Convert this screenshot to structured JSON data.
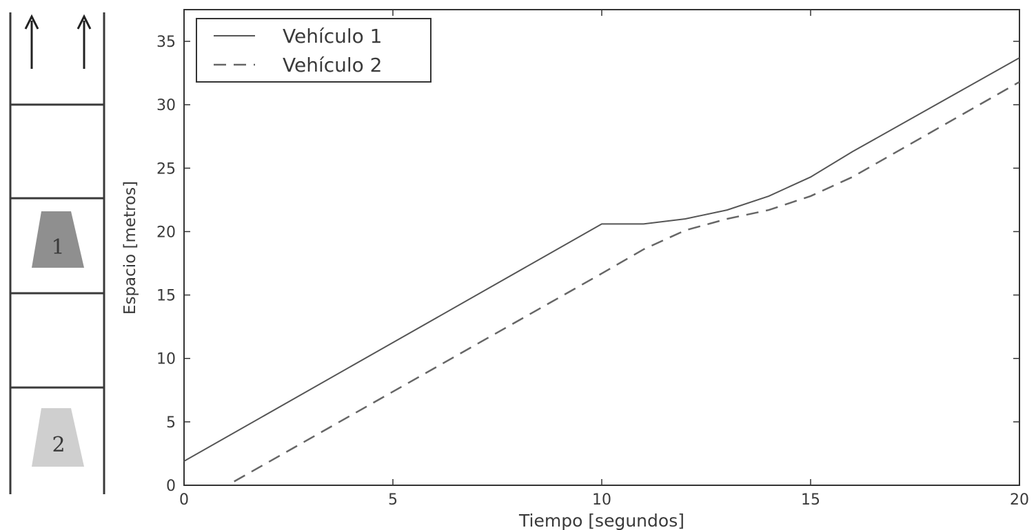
{
  "road": {
    "vehicle_1_label": "1",
    "vehicle_2_label": "2",
    "vehicle_1_color": "#8f8f8f",
    "vehicle_2_color": "#cfcfcf",
    "direction_icons": [
      "up-arrow-icon",
      "up-arrow-icon"
    ]
  },
  "chart_data": {
    "type": "line",
    "title": "",
    "xlabel": "Tiempo [segundos]",
    "ylabel": "Espacio [metros]",
    "xlim": [
      0,
      20
    ],
    "ylim": [
      0,
      37.5
    ],
    "xticks": [
      0,
      5,
      10,
      15,
      20
    ],
    "yticks": [
      0,
      5,
      10,
      15,
      20,
      25,
      30,
      35
    ],
    "grid": false,
    "legend_position": "top-left",
    "series": [
      {
        "name": "Vehículo 1",
        "style": "solid",
        "color": "#555555",
        "x": [
          0,
          10,
          11,
          12,
          13,
          14,
          15,
          16,
          20
        ],
        "y": [
          1.9,
          20.6,
          20.6,
          21.0,
          21.7,
          22.8,
          24.3,
          26.3,
          33.7
        ]
      },
      {
        "name": "Vehículo 2",
        "style": "dashed",
        "color": "#666666",
        "x": [
          1.2,
          10,
          11,
          12,
          13,
          14,
          15,
          16,
          20
        ],
        "y": [
          0.3,
          16.7,
          18.6,
          20.1,
          21.0,
          21.7,
          22.8,
          24.3,
          31.8
        ]
      }
    ]
  }
}
